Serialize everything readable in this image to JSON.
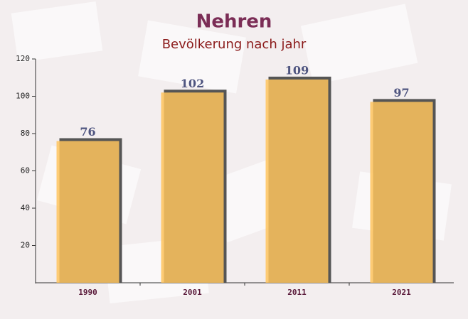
{
  "chart_data": {
    "type": "bar",
    "title": "Nehren",
    "subtitle": "Bevölkerung nach jahr",
    "categories": [
      "1990",
      "2001",
      "2011",
      "2021"
    ],
    "values": [
      76,
      102,
      109,
      97
    ],
    "color": "#fec45e",
    "ylim": [
      0,
      120
    ],
    "yticks": [
      20,
      40,
      60,
      80,
      100,
      120
    ]
  }
}
